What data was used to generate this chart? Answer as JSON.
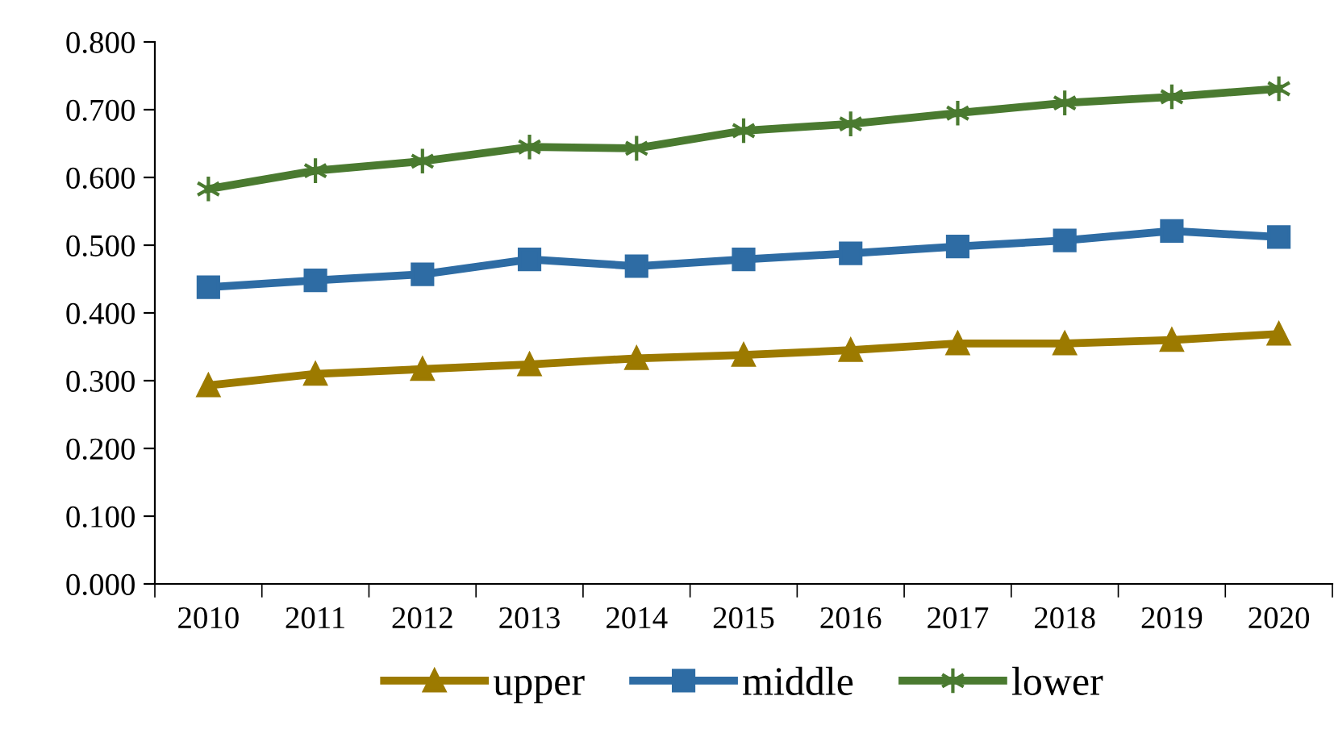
{
  "chart_data": {
    "type": "line",
    "categories": [
      "2010",
      "2011",
      "2012",
      "2013",
      "2014",
      "2015",
      "2016",
      "2017",
      "2018",
      "2019",
      "2020"
    ],
    "series": [
      {
        "name": "upper",
        "color": "#9c7a00",
        "marker": "triangle",
        "values": [
          0.293,
          0.31,
          0.317,
          0.324,
          0.333,
          0.338,
          0.345,
          0.355,
          0.355,
          0.36,
          0.369
        ]
      },
      {
        "name": "middle",
        "color": "#2e6ca4",
        "marker": "square",
        "values": [
          0.438,
          0.448,
          0.457,
          0.479,
          0.469,
          0.479,
          0.488,
          0.498,
          0.507,
          0.521,
          0.512
        ]
      },
      {
        "name": "lower",
        "color": "#4a7a30",
        "marker": "cross",
        "values": [
          0.583,
          0.61,
          0.624,
          0.645,
          0.643,
          0.669,
          0.679,
          0.695,
          0.71,
          0.719,
          0.731
        ]
      }
    ],
    "ylim": [
      0,
      0.8
    ],
    "yticks": [
      {
        "value": 0,
        "label": "0.000"
      },
      {
        "value": 0.1,
        "label": "0.100"
      },
      {
        "value": 0.2,
        "label": "0.200"
      },
      {
        "value": 0.3,
        "label": "0.300"
      },
      {
        "value": 0.4,
        "label": "0.400"
      },
      {
        "value": 0.5,
        "label": "0.500"
      },
      {
        "value": 0.6,
        "label": "0.600"
      },
      {
        "value": 0.7,
        "label": "0.700"
      },
      {
        "value": 0.8,
        "label": "0.800"
      }
    ],
    "grid": false,
    "legend": "bottom",
    "line_style": "solid"
  }
}
